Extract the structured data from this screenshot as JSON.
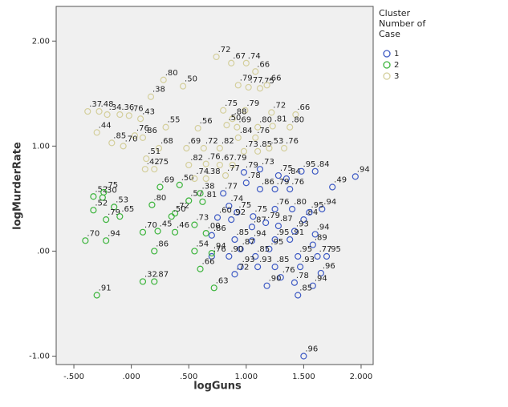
{
  "chart_data": {
    "type": "scatter",
    "x_label": "logGuns",
    "y_label": "logMurderRate",
    "legend_title": "Cluster Number of Case",
    "xlim": [
      -0.654,
      2.105
    ],
    "ylim": [
      -1.08,
      2.33
    ],
    "xticks": [
      {
        "value": -0.5,
        "label": "-.500"
      },
      {
        "value": 0,
        "label": ".000"
      },
      {
        "value": 0.5,
        "label": ".500"
      },
      {
        "value": 1,
        "label": "1.000"
      },
      {
        "value": 1.5,
        "label": "1.500"
      },
      {
        "value": 2,
        "label": "2.000"
      }
    ],
    "yticks": [
      {
        "value": -1,
        "label": "-1.00"
      },
      {
        "value": 0,
        "label": ".00"
      },
      {
        "value": 1,
        "label": "1.00"
      },
      {
        "value": 2,
        "label": "2.00"
      }
    ],
    "grid": false,
    "legend_position": "right",
    "series": [
      {
        "name": "1",
        "color": "#3f5bc4",
        "x": [
          0.98,
          1.12,
          1.28,
          1.35,
          1.48,
          1.6,
          1.75,
          1.95,
          1.0,
          1.12,
          1.25,
          1.38,
          1.66,
          0.8,
          0.85,
          0.92,
          1.06,
          1.25,
          1.4,
          1.5,
          1.55,
          0.75,
          0.87,
          1.05,
          1.17,
          1.28,
          1.42,
          1.6,
          0.7,
          0.9,
          1.05,
          1.25,
          1.38,
          1.58,
          0.95,
          1.2,
          0.85,
          1.08,
          1.45,
          1.62,
          1.7,
          0.7,
          0.95,
          1.1,
          1.25,
          1.47,
          1.65,
          0.9,
          1.3,
          1.18,
          1.42,
          1.58,
          1.45,
          1.5
        ],
        "values": [
          0.75,
          0.78,
          0.72,
          0.69,
          0.76,
          0.76,
          0.61,
          0.71,
          0.65,
          0.59,
          0.59,
          0.59,
          0.4,
          0.55,
          0.43,
          0.37,
          0.33,
          0.4,
          0.4,
          0.3,
          0.37,
          0.32,
          0.3,
          0.23,
          0.27,
          0.24,
          0.19,
          0.16,
          0.15,
          0.11,
          0.1,
          0.11,
          0.11,
          0.06,
          0.02,
          0.02,
          -0.05,
          -0.05,
          -0.05,
          -0.05,
          -0.05,
          -0.05,
          -0.15,
          -0.15,
          -0.15,
          -0.15,
          -0.21,
          -0.22,
          -0.25,
          -0.33,
          -0.3,
          -0.33,
          -0.42,
          -1.0
        ],
        "point_labels": [
          ".79",
          ".73",
          ".75",
          ".84",
          ".95",
          ".84",
          ".49",
          ".94",
          ".78",
          ".86",
          ".79",
          ".76",
          ".94",
          ".77",
          ".74",
          ".75",
          ".75",
          ".76",
          ".80",
          ".84",
          ".95",
          ".60",
          ".92",
          ".87",
          ".79",
          ".87",
          ".93",
          ".94",
          ".86",
          ".85",
          ".94",
          ".95",
          ".91",
          ".89",
          ".87",
          ".95",
          ".90",
          ".85",
          ".95",
          ".77",
          ".95",
          ".76",
          ".93",
          ".93",
          ".85",
          ".93",
          ".96",
          ".72",
          ".76",
          ".90",
          ".78",
          ".94",
          ".85",
          ".96"
        ]
      },
      {
        "name": "2",
        "color": "#3cb43c",
        "x": [
          -0.33,
          -0.25,
          -0.15,
          -0.33,
          -0.22,
          -0.1,
          -0.24,
          0.25,
          0.42,
          0.18,
          0.38,
          0.35,
          0.5,
          0.1,
          0.23,
          0.38,
          0.55,
          0.65,
          -0.4,
          -0.22,
          0.2,
          0.55,
          0.7,
          0.6,
          0.1,
          0.2,
          -0.3,
          0.72,
          0.6,
          0.62
        ],
        "values": [
          0.52,
          0.51,
          0.42,
          0.39,
          0.3,
          0.33,
          0.56,
          0.61,
          0.63,
          0.44,
          0.36,
          0.33,
          0.48,
          0.18,
          0.19,
          0.18,
          0.25,
          0.17,
          0.1,
          0.1,
          0.0,
          0.0,
          -0.02,
          -0.17,
          -0.29,
          -0.29,
          -0.42,
          -0.35,
          0.55,
          0.47
        ],
        "point_labels": [
          ".52",
          ".30",
          ".53",
          ".52",
          ".79",
          ".65",
          ".75",
          ".69",
          ".50",
          ".80",
          ".72",
          ".50",
          ".57",
          ".70",
          ".45",
          ".46",
          ".73",
          ".00",
          ".70",
          ".94",
          ".86",
          ".54",
          ".94",
          ".66",
          ".32",
          ".87",
          ".91",
          ".63",
          ".38",
          ".81"
        ]
      },
      {
        "name": "3",
        "color": "#d4cf9c",
        "x": [
          0.74,
          0.87,
          1.0,
          1.08,
          0.28,
          0.45,
          0.93,
          1.02,
          1.12,
          1.18,
          0.17,
          -0.38,
          -0.28,
          -0.21,
          -0.1,
          -0.02,
          0.08,
          0.8,
          0.99,
          1.22,
          1.43,
          0.88,
          0.83,
          0.92,
          1.1,
          1.23,
          1.38,
          0.3,
          0.58,
          -0.3,
          -0.17,
          0.03,
          0.1,
          -0.07,
          0.24,
          0.48,
          0.63,
          0.77,
          0.93,
          1.08,
          0.98,
          1.1,
          1.2,
          1.33,
          0.13,
          0.12,
          0.2,
          0.5,
          0.65,
          0.77,
          0.88,
          0.82,
          0.55,
          0.65
        ],
        "values": [
          1.85,
          1.79,
          1.79,
          1.71,
          1.63,
          1.57,
          1.58,
          1.56,
          1.55,
          1.58,
          1.47,
          1.33,
          1.33,
          1.3,
          1.3,
          1.29,
          1.26,
          1.34,
          1.34,
          1.32,
          1.3,
          1.26,
          1.2,
          1.18,
          1.18,
          1.19,
          1.18,
          1.18,
          1.17,
          1.13,
          1.03,
          1.1,
          1.08,
          1.0,
          0.98,
          0.98,
          0.98,
          0.98,
          1.08,
          1.08,
          0.95,
          0.95,
          0.98,
          0.98,
          0.88,
          0.78,
          0.78,
          0.82,
          0.83,
          0.82,
          0.82,
          0.72,
          0.69,
          0.69
        ],
        "point_labels": [
          ".72",
          ".67",
          ".74",
          ".66",
          ".80",
          ".50",
          ".79",
          ".77",
          ".75",
          ".66",
          ".38",
          ".37",
          ".48",
          ".34",
          ".36",
          ".76",
          ".43",
          ".75",
          ".79",
          ".72",
          ".66",
          ".88",
          ".50",
          ".69",
          ".80",
          ".81",
          ".80",
          ".55",
          ".56",
          ".44",
          ".85",
          ".76",
          ".86",
          ".70",
          ".68",
          ".69",
          ".72",
          ".82",
          ".84",
          ".76",
          ".73",
          ".85",
          ".53",
          ".76",
          ".51",
          ".42",
          ".75",
          ".82",
          ".76",
          ".67",
          ".79",
          ".77",
          ".74",
          ".38"
        ]
      }
    ]
  }
}
